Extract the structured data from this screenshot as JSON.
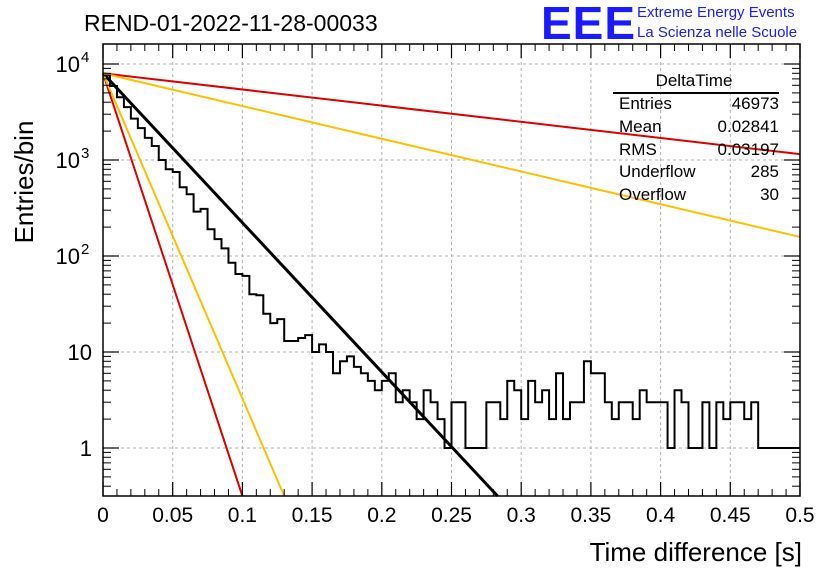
{
  "title": "REND-01-2022-11-28-00033",
  "logo": {
    "mark": "EEE",
    "line1": "Extreme Energy Events",
    "line2": "La Scienza nelle Scuole"
  },
  "stats": {
    "title": "DeltaTime",
    "rows": [
      {
        "label": "Entries",
        "value": "46973"
      },
      {
        "label": "Mean",
        "value": "0.02841"
      },
      {
        "label": "RMS",
        "value": "0.03197"
      },
      {
        "label": "Underflow",
        "value": "285"
      },
      {
        "label": "Overflow",
        "value": "30"
      }
    ]
  },
  "chart_data": {
    "type": "histogram",
    "xlabel": "Time difference [s]",
    "ylabel": "Entries/bin",
    "xlim": [
      0,
      0.5
    ],
    "ylim": [
      0.3,
      15000
    ],
    "y_scale": "log",
    "grid": true,
    "x_ticks": [
      "0",
      "0.05",
      "0.1",
      "0.15",
      "0.2",
      "0.25",
      "0.3",
      "0.35",
      "0.4",
      "0.45",
      "0.5"
    ],
    "y_ticks": [
      {
        "value": 1,
        "label": "1"
      },
      {
        "value": 10,
        "label": "10"
      },
      {
        "value": 100,
        "label": "10",
        "exp": "2"
      },
      {
        "value": 1000,
        "label": "10",
        "exp": "3"
      },
      {
        "value": 10000,
        "label": "10",
        "exp": "4"
      }
    ],
    "colors": {
      "histogram": "#000000",
      "fit": "#000000",
      "red": "#dd0000",
      "yellow": "#ffc000"
    },
    "histogram": {
      "bin_width": 0.005,
      "counts": [
        7600,
        5900,
        4500,
        3550,
        2700,
        2150,
        1700,
        1400,
        1000,
        800,
        750,
        520,
        440,
        290,
        310,
        190,
        150,
        120,
        85,
        65,
        62,
        40,
        39,
        25,
        20,
        22,
        13,
        13,
        14,
        15,
        10,
        12,
        10,
        6,
        8,
        9,
        7,
        6,
        5,
        4,
        5,
        6,
        3,
        4,
        3,
        2,
        4,
        3,
        2,
        1,
        3,
        3,
        1,
        1,
        1,
        3,
        3,
        2,
        5,
        4,
        2,
        5,
        3,
        4,
        2,
        6,
        2,
        3,
        3,
        8,
        6,
        6,
        3,
        2,
        3,
        3,
        2,
        4,
        3,
        3,
        3,
        1,
        4,
        3,
        1,
        1,
        3,
        1,
        3,
        2,
        3,
        3,
        2,
        3,
        1,
        1,
        1,
        1,
        1,
        1
      ]
    },
    "series": [
      {
        "color_key": "fit",
        "x": [
          0,
          0.283
        ],
        "y": [
          8000,
          0.3
        ]
      },
      {
        "color_key": "red",
        "x": [
          0,
          0.1
        ],
        "y": [
          8000,
          0.3
        ]
      },
      {
        "color_key": "yellow",
        "x": [
          0,
          0.13
        ],
        "y": [
          8000,
          0.3
        ]
      },
      {
        "color_key": "red",
        "x": [
          0,
          0.5
        ],
        "y": [
          8000,
          1150
        ]
      },
      {
        "color_key": "yellow",
        "x": [
          0,
          0.5
        ],
        "y": [
          8000,
          158
        ]
      }
    ]
  }
}
